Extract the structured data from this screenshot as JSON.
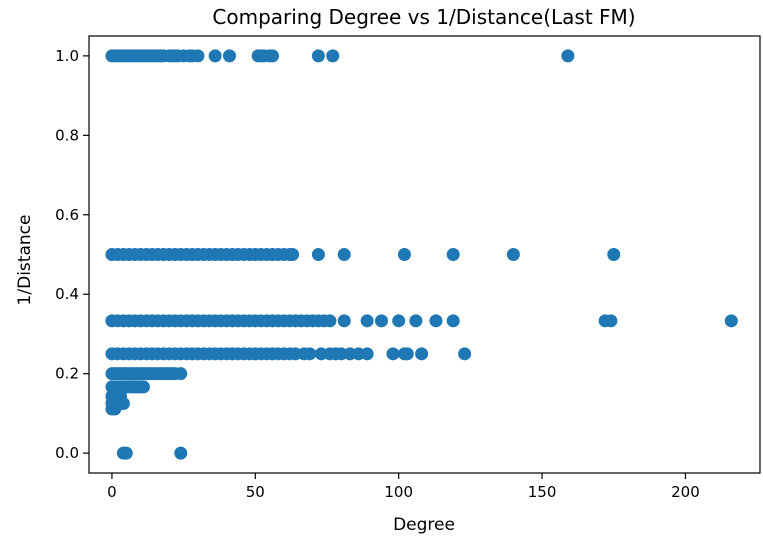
{
  "chart_data": {
    "type": "scatter",
    "title": "Comparing Degree vs 1/Distance(Last FM)",
    "xlabel": "Degree",
    "ylabel": "1/Distance",
    "xlim": [
      -8,
      226
    ],
    "ylim": [
      -0.05,
      1.05
    ],
    "xticks": [
      0,
      50,
      100,
      150,
      200
    ],
    "yticks": [
      0.0,
      0.2,
      0.4,
      0.6,
      0.8,
      1.0
    ],
    "xtick_labels": [
      "0",
      "50",
      "100",
      "150",
      "200"
    ],
    "ytick_labels": [
      "0.0",
      "0.2",
      "0.4",
      "0.6",
      "0.8",
      "1.0"
    ],
    "grid": false,
    "marker_color": "#1f77b4",
    "series": [
      {
        "points": [
          [
            0,
            1.0
          ],
          [
            1,
            1.0
          ],
          [
            2,
            1.0
          ],
          [
            3,
            1.0
          ],
          [
            4,
            1.0
          ],
          [
            5,
            1.0
          ],
          [
            6,
            1.0
          ],
          [
            7,
            1.0
          ],
          [
            8,
            1.0
          ],
          [
            9,
            1.0
          ],
          [
            10,
            1.0
          ],
          [
            11,
            1.0
          ],
          [
            12,
            1.0
          ],
          [
            13,
            1.0
          ],
          [
            14,
            1.0
          ],
          [
            15,
            1.0
          ],
          [
            16,
            1.0
          ],
          [
            17,
            1.0
          ],
          [
            18,
            1.0
          ],
          [
            20,
            1.0
          ],
          [
            21,
            1.0
          ],
          [
            22,
            1.0
          ],
          [
            23,
            1.0
          ],
          [
            25,
            1.0
          ],
          [
            27,
            1.0
          ],
          [
            28,
            1.0
          ],
          [
            30,
            1.0
          ],
          [
            36,
            1.0
          ],
          [
            41,
            1.0
          ],
          [
            51,
            1.0
          ],
          [
            52,
            1.0
          ],
          [
            53,
            1.0
          ],
          [
            55,
            1.0
          ],
          [
            56,
            1.0
          ],
          [
            72,
            1.0
          ],
          [
            77,
            1.0
          ],
          [
            159,
            1.0
          ],
          [
            0,
            0.5
          ],
          [
            2,
            0.5
          ],
          [
            4,
            0.5
          ],
          [
            6,
            0.5
          ],
          [
            8,
            0.5
          ],
          [
            10,
            0.5
          ],
          [
            12,
            0.5
          ],
          [
            14,
            0.5
          ],
          [
            16,
            0.5
          ],
          [
            18,
            0.5
          ],
          [
            20,
            0.5
          ],
          [
            22,
            0.5
          ],
          [
            24,
            0.5
          ],
          [
            26,
            0.5
          ],
          [
            28,
            0.5
          ],
          [
            30,
            0.5
          ],
          [
            32,
            0.5
          ],
          [
            34,
            0.5
          ],
          [
            36,
            0.5
          ],
          [
            38,
            0.5
          ],
          [
            40,
            0.5
          ],
          [
            42,
            0.5
          ],
          [
            44,
            0.5
          ],
          [
            46,
            0.5
          ],
          [
            48,
            0.5
          ],
          [
            50,
            0.5
          ],
          [
            52,
            0.5
          ],
          [
            54,
            0.5
          ],
          [
            56,
            0.5
          ],
          [
            58,
            0.5
          ],
          [
            60,
            0.5
          ],
          [
            62,
            0.5
          ],
          [
            63,
            0.5
          ],
          [
            72,
            0.5
          ],
          [
            81,
            0.5
          ],
          [
            102,
            0.5
          ],
          [
            119,
            0.5
          ],
          [
            140,
            0.5
          ],
          [
            175,
            0.5
          ],
          [
            0,
            0.333
          ],
          [
            2,
            0.333
          ],
          [
            4,
            0.333
          ],
          [
            6,
            0.333
          ],
          [
            8,
            0.333
          ],
          [
            10,
            0.333
          ],
          [
            12,
            0.333
          ],
          [
            14,
            0.333
          ],
          [
            16,
            0.333
          ],
          [
            18,
            0.333
          ],
          [
            20,
            0.333
          ],
          [
            22,
            0.333
          ],
          [
            24,
            0.333
          ],
          [
            26,
            0.333
          ],
          [
            28,
            0.333
          ],
          [
            30,
            0.333
          ],
          [
            32,
            0.333
          ],
          [
            34,
            0.333
          ],
          [
            36,
            0.333
          ],
          [
            38,
            0.333
          ],
          [
            40,
            0.333
          ],
          [
            42,
            0.333
          ],
          [
            44,
            0.333
          ],
          [
            46,
            0.333
          ],
          [
            48,
            0.333
          ],
          [
            50,
            0.333
          ],
          [
            52,
            0.333
          ],
          [
            54,
            0.333
          ],
          [
            56,
            0.333
          ],
          [
            58,
            0.333
          ],
          [
            60,
            0.333
          ],
          [
            62,
            0.333
          ],
          [
            64,
            0.333
          ],
          [
            66,
            0.333
          ],
          [
            68,
            0.333
          ],
          [
            70,
            0.333
          ],
          [
            72,
            0.333
          ],
          [
            74,
            0.333
          ],
          [
            76,
            0.333
          ],
          [
            81,
            0.333
          ],
          [
            89,
            0.333
          ],
          [
            94,
            0.333
          ],
          [
            100,
            0.333
          ],
          [
            106,
            0.333
          ],
          [
            113,
            0.333
          ],
          [
            119,
            0.333
          ],
          [
            172,
            0.333
          ],
          [
            174,
            0.333
          ],
          [
            216,
            0.333
          ],
          [
            0,
            0.25
          ],
          [
            2,
            0.25
          ],
          [
            4,
            0.25
          ],
          [
            6,
            0.25
          ],
          [
            8,
            0.25
          ],
          [
            10,
            0.25
          ],
          [
            12,
            0.25
          ],
          [
            14,
            0.25
          ],
          [
            16,
            0.25
          ],
          [
            18,
            0.25
          ],
          [
            20,
            0.25
          ],
          [
            22,
            0.25
          ],
          [
            24,
            0.25
          ],
          [
            26,
            0.25
          ],
          [
            28,
            0.25
          ],
          [
            30,
            0.25
          ],
          [
            32,
            0.25
          ],
          [
            34,
            0.25
          ],
          [
            36,
            0.25
          ],
          [
            38,
            0.25
          ],
          [
            40,
            0.25
          ],
          [
            42,
            0.25
          ],
          [
            44,
            0.25
          ],
          [
            46,
            0.25
          ],
          [
            48,
            0.25
          ],
          [
            50,
            0.25
          ],
          [
            52,
            0.25
          ],
          [
            54,
            0.25
          ],
          [
            56,
            0.25
          ],
          [
            58,
            0.25
          ],
          [
            60,
            0.25
          ],
          [
            62,
            0.25
          ],
          [
            64,
            0.25
          ],
          [
            67,
            0.25
          ],
          [
            69,
            0.25
          ],
          [
            73,
            0.25
          ],
          [
            76,
            0.25
          ],
          [
            78,
            0.25
          ],
          [
            80,
            0.25
          ],
          [
            83,
            0.25
          ],
          [
            86,
            0.25
          ],
          [
            89,
            0.25
          ],
          [
            98,
            0.25
          ],
          [
            102,
            0.25
          ],
          [
            103,
            0.25
          ],
          [
            108,
            0.25
          ],
          [
            123,
            0.25
          ],
          [
            0,
            0.2
          ],
          [
            1,
            0.2
          ],
          [
            2,
            0.2
          ],
          [
            3,
            0.2
          ],
          [
            4,
            0.2
          ],
          [
            5,
            0.2
          ],
          [
            6,
            0.2
          ],
          [
            7,
            0.2
          ],
          [
            8,
            0.2
          ],
          [
            9,
            0.2
          ],
          [
            10,
            0.2
          ],
          [
            11,
            0.2
          ],
          [
            12,
            0.2
          ],
          [
            13,
            0.2
          ],
          [
            14,
            0.2
          ],
          [
            15,
            0.2
          ],
          [
            16,
            0.2
          ],
          [
            17,
            0.2
          ],
          [
            18,
            0.2
          ],
          [
            19,
            0.2
          ],
          [
            20,
            0.2
          ],
          [
            21,
            0.2
          ],
          [
            22,
            0.2
          ],
          [
            24,
            0.2
          ],
          [
            0,
            0.1667
          ],
          [
            1,
            0.1667
          ],
          [
            2,
            0.1667
          ],
          [
            3,
            0.1667
          ],
          [
            4,
            0.1667
          ],
          [
            5,
            0.1667
          ],
          [
            6,
            0.1667
          ],
          [
            7,
            0.1667
          ],
          [
            8,
            0.1667
          ],
          [
            9,
            0.1667
          ],
          [
            10,
            0.1667
          ],
          [
            11,
            0.1667
          ],
          [
            0,
            0.1429
          ],
          [
            1,
            0.1429
          ],
          [
            2,
            0.1429
          ],
          [
            3,
            0.1429
          ],
          [
            0,
            0.125
          ],
          [
            1,
            0.125
          ],
          [
            2,
            0.125
          ],
          [
            3,
            0.125
          ],
          [
            4,
            0.125
          ],
          [
            0,
            0.111
          ],
          [
            1,
            0.111
          ],
          [
            4,
            0.0
          ],
          [
            5,
            0.0
          ],
          [
            24,
            0.0
          ]
        ]
      }
    ]
  }
}
